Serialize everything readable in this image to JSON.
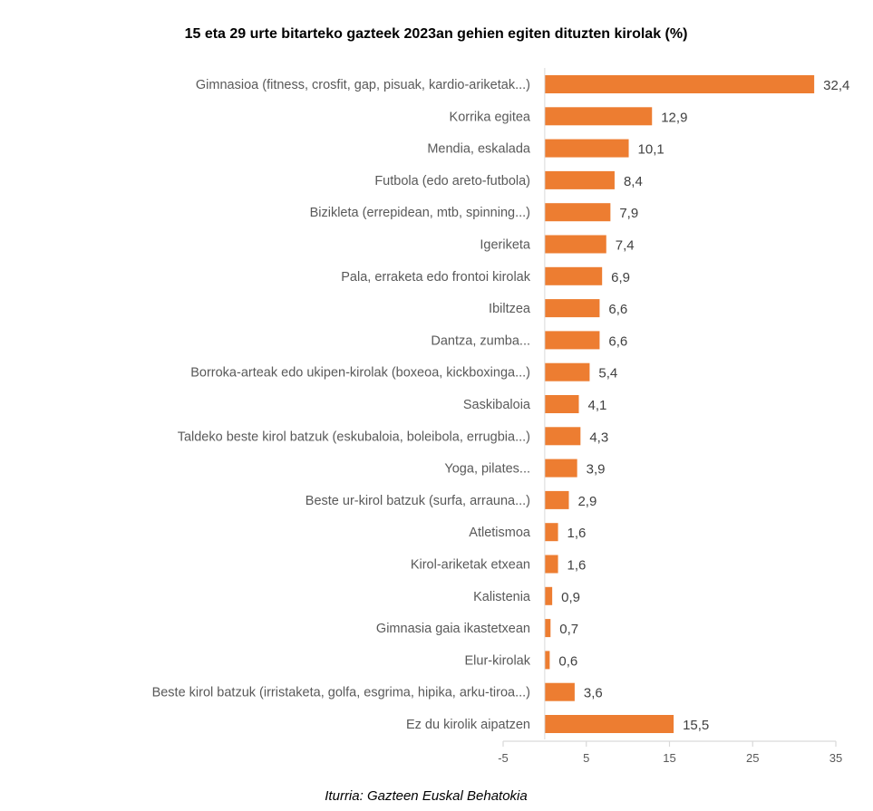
{
  "chart_data": {
    "type": "bar",
    "orientation": "horizontal",
    "title": "15 eta 29 urte bitarteko gazteek 2023an gehien egiten dituzten kirolak (%)",
    "categories": [
      "Gimnasioa (fitness, crosfit, gap, pisuak, kardio-ariketak...)",
      "Korrika egitea",
      "Mendia, eskalada",
      "Futbola (edo areto-futbola)",
      "Bizikleta (errepidean, mtb, spinning...)",
      "Igeriketa",
      "Pala, erraketa edo frontoi kirolak",
      "Ibiltzea",
      "Dantza, zumba...",
      "Borroka-arteak edo ukipen-kirolak (boxeoa, kickboxinga...)",
      "Saskibaloia",
      "Taldeko beste kirol batzuk (eskubaloia, boleibola, errugbia...)",
      "Yoga, pilates...",
      "Beste ur-kirol batzuk  (surfa, arrauna...)",
      "Atletismoa",
      "Kirol-ariketak etxean",
      "Kalistenia",
      "Gimnasia gaia ikastetxean",
      "Elur-kirolak",
      "Beste kirol batzuk (irristaketa, golfa, esgrima, hipika, arku-tiroa...)",
      "Ez du kirolik aipatzen"
    ],
    "values": [
      32.4,
      12.9,
      10.1,
      8.4,
      7.9,
      7.4,
      6.9,
      6.6,
      6.6,
      5.4,
      4.1,
      4.3,
      3.9,
      2.9,
      1.6,
      1.6,
      0.9,
      0.7,
      0.6,
      3.6,
      15.5
    ],
    "value_labels": [
      "32,4",
      "12,9",
      "10,1",
      "8,4",
      "7,9",
      "7,4",
      "6,9",
      "6,6",
      "6,6",
      "5,4",
      "4,1",
      "4,3",
      "3,9",
      "2,9",
      "1,6",
      "1,6",
      "0,9",
      "0,7",
      "0,6",
      "3,6",
      "15,5"
    ],
    "xlim": [
      -5,
      35
    ],
    "xticks": [
      -5,
      5,
      15,
      25,
      35
    ],
    "xtick_labels": [
      "-5",
      "5",
      "15",
      "25",
      "35"
    ],
    "grid": false,
    "legend": "none",
    "colors": {
      "bar": "#ED7D31",
      "axis": "#D9D9D9"
    }
  },
  "source": "Iturria: Gazteen Euskal Behatokia"
}
